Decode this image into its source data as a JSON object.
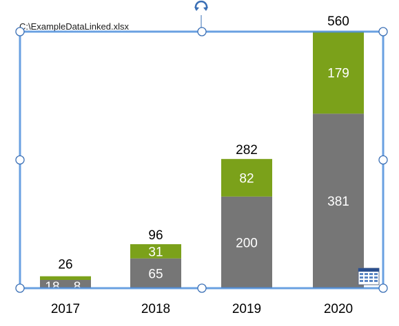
{
  "file_label": "C:\\ExampleDataLinked.xlsx",
  "chart_data": {
    "type": "bar",
    "stacked": true,
    "categories": [
      "2017",
      "2018",
      "2019",
      "2020"
    ],
    "series": [
      {
        "values": [
          18,
          65,
          200,
          381
        ],
        "color": "#767676"
      },
      {
        "values": [
          8,
          31,
          82,
          179
        ],
        "color": "#7ba11a"
      }
    ],
    "totals": [
      26,
      96,
      282,
      560
    ],
    "title": "",
    "xlabel": "",
    "ylabel": "",
    "ylim": [
      0,
      560
    ],
    "grid": false,
    "legend": "none"
  },
  "selection": {
    "border_color": "#4f8fdc",
    "handle_fill": "#ffffff",
    "handle_stroke": "#3a6fb5",
    "rotate_color": "#3a6fb5"
  },
  "icons": {
    "rotate": "rotate-handle-icon",
    "datasheet": "datasheet-icon"
  }
}
